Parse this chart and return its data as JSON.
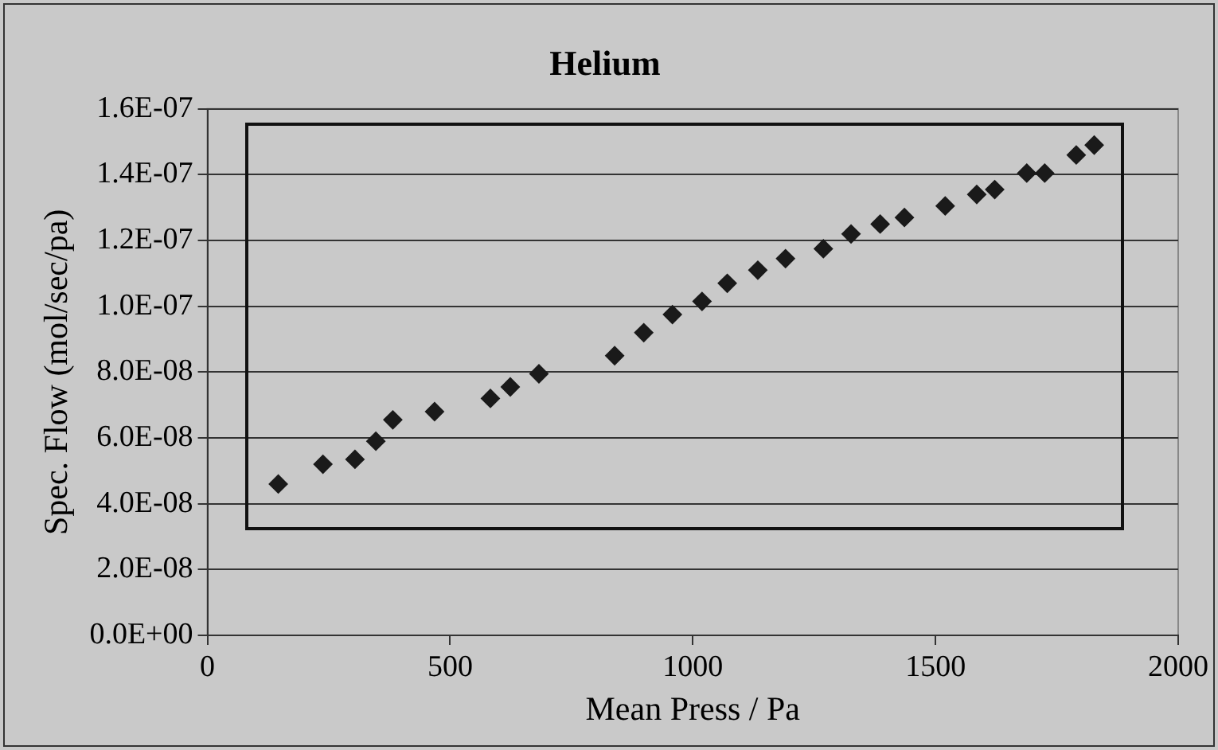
{
  "chart_data": {
    "type": "scatter",
    "title": "Helium",
    "xlabel": "Mean Press / Pa",
    "ylabel": "Spec. Flow (mol/sec/pa)",
    "x": [
      146,
      238,
      304,
      347,
      382,
      468,
      583,
      624,
      683,
      839,
      899,
      958,
      1019,
      1071,
      1134,
      1191,
      1269,
      1326,
      1386,
      1436,
      1520,
      1585,
      1622,
      1688,
      1725,
      1790,
      1827
    ],
    "series": [
      {
        "color": "#1a1a1a",
        "values": [
          4.6e-08,
          5.2e-08,
          5.35e-08,
          5.9e-08,
          6.55e-08,
          6.8e-08,
          7.2e-08,
          7.55e-08,
          7.95e-08,
          8.5e-08,
          9.2e-08,
          9.75e-08,
          1.015e-07,
          1.07e-07,
          1.11e-07,
          1.145e-07,
          1.175e-07,
          1.22e-07,
          1.25e-07,
          1.27e-07,
          1.305e-07,
          1.34e-07,
          1.355e-07,
          1.405e-07,
          1.405e-07,
          1.46e-07,
          1.49e-07
        ]
      }
    ],
    "xlim": [
      0,
      2000
    ],
    "xticks": [
      0,
      500,
      1000,
      1500,
      2000
    ],
    "ylim": [
      0,
      1.6e-07
    ],
    "yticks": [
      {
        "value": 0,
        "label": "0.0E+00"
      },
      {
        "value": 2e-08,
        "label": "2.0E-08"
      },
      {
        "value": 4e-08,
        "label": "4.0E-08"
      },
      {
        "value": 6e-08,
        "label": "6.0E-08"
      },
      {
        "value": 8e-08,
        "label": "8.0E-08"
      },
      {
        "value": 1e-07,
        "label": "1.0E-07"
      },
      {
        "value": 1.2e-07,
        "label": "1.2E-07"
      },
      {
        "value": 1.4e-07,
        "label": "1.4E-07"
      },
      {
        "value": 1.6e-07,
        "label": "1.6E-07"
      }
    ],
    "grid": "y",
    "legend": false,
    "marker": "diamond"
  }
}
